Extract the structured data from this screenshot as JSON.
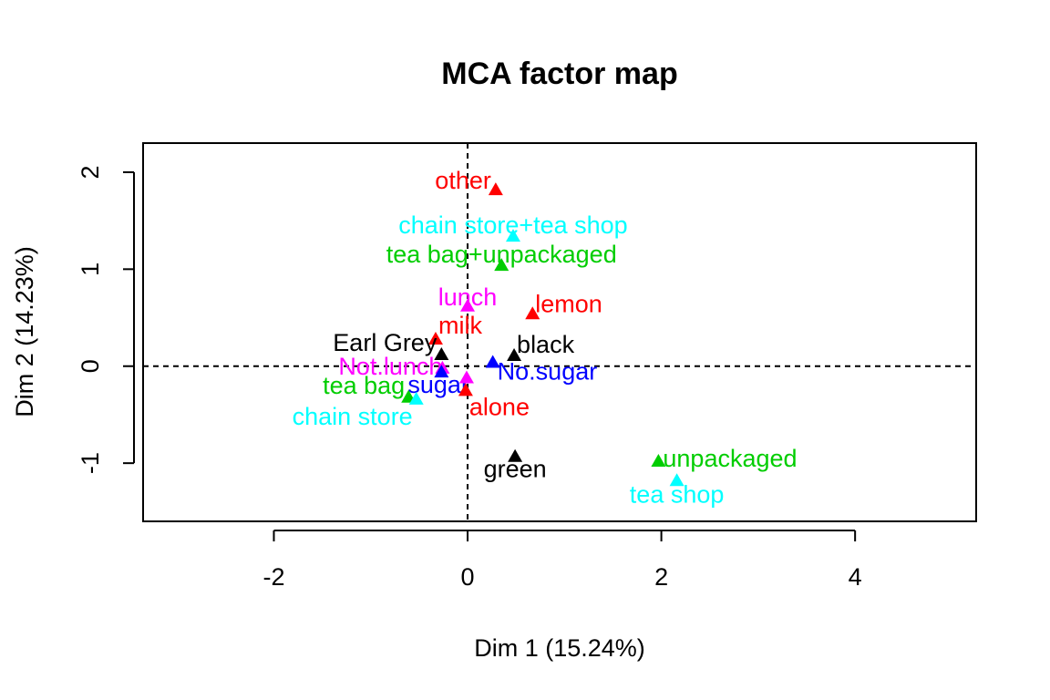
{
  "chart_data": {
    "type": "scatter",
    "title": "MCA factor map",
    "xlabel": "Dim 1 (15.24%)",
    "ylabel": "Dim 2 (14.23%)",
    "xlim": [
      -3.35,
      5.25
    ],
    "ylim": [
      -1.6,
      2.3
    ],
    "xticks": [
      -2,
      0,
      2,
      4
    ],
    "yticks": [
      -1,
      0,
      1,
      2
    ],
    "xtick_labels": [
      "-2",
      "0",
      "2",
      "4"
    ],
    "ytick_labels": [
      "-1",
      "0",
      "1",
      "2"
    ],
    "reference_lines": {
      "x": 0,
      "y": 0,
      "style": "dashed"
    },
    "colors": {
      "black": "#000000",
      "red": "#ff0000",
      "green": "#00cd00",
      "blue": "#0000ff",
      "cyan": "#00ffff",
      "magenta": "#ff00ff"
    },
    "points": [
      {
        "label": "other",
        "x": 0.29,
        "y": 1.82,
        "color": "red",
        "anchor": "end",
        "dx": -5,
        "dy": -1
      },
      {
        "label": "chain store+tea shop",
        "x": 0.47,
        "y": 1.34,
        "color": "cyan",
        "anchor": "middle",
        "dx": 0,
        "dy": -3
      },
      {
        "label": "tea bag+unpackaged",
        "x": 0.35,
        "y": 1.04,
        "color": "green",
        "anchor": "middle",
        "dx": 0,
        "dy": -3
      },
      {
        "label": "lunch",
        "x": 0.0,
        "y": 0.62,
        "color": "magenta",
        "anchor": "middle",
        "dx": 0,
        "dy": -1
      },
      {
        "label": "lemon",
        "x": 0.67,
        "y": 0.54,
        "color": "red",
        "anchor": "start",
        "dx": 3,
        "dy": -2
      },
      {
        "label": "milk",
        "x": -0.33,
        "y": 0.28,
        "color": "red",
        "anchor": "start",
        "dx": 3,
        "dy": -6
      },
      {
        "label": "Earl Grey",
        "x": -0.27,
        "y": 0.12,
        "color": "black",
        "anchor": "end",
        "dx": -5,
        "dy": -4
      },
      {
        "label": "black",
        "x": 0.48,
        "y": 0.11,
        "color": "black",
        "anchor": "start",
        "dx": 3,
        "dy": -3
      },
      {
        "label": "No.sugar",
        "x": 0.26,
        "y": 0.04,
        "color": "blue",
        "anchor": "start",
        "dx": 5,
        "dy": 19
      },
      {
        "label": "Not.lunch",
        "x": -0.26,
        "y": -0.02,
        "color": "magenta",
        "anchor": "end",
        "dx": 0,
        "dy": 7
      },
      {
        "label": "sugar",
        "x": -0.27,
        "y": -0.06,
        "color": "blue",
        "anchor": "start",
        "dx": -37,
        "dy": 23
      },
      {
        "label": "tea bag",
        "x": -0.61,
        "y": -0.32,
        "color": "green",
        "anchor": "end",
        "dx": -4,
        "dy": -4
      },
      {
        "label": "chain store",
        "x": -0.53,
        "y": -0.34,
        "color": "cyan",
        "anchor": "end",
        "dx": -4,
        "dy": 28
      },
      {
        "label": "alone",
        "x": -0.02,
        "y": -0.25,
        "color": "red",
        "anchor": "start",
        "dx": 4,
        "dy": 27
      },
      {
        "label": "green",
        "x": 0.49,
        "y": -0.93,
        "color": "black",
        "anchor": "middle",
        "dx": 0,
        "dy": 23
      },
      {
        "label": "unpackaged",
        "x": 1.97,
        "y": -0.98,
        "color": "green",
        "anchor": "start",
        "dx": 5,
        "dy": 6
      },
      {
        "label": "tea shop",
        "x": 2.16,
        "y": -1.18,
        "color": "cyan",
        "anchor": "middle",
        "dx": 0,
        "dy": 24
      },
      {
        "label": "",
        "x": -0.01,
        "y": -0.12,
        "color": "magenta",
        "anchor": "middle",
        "dx": 0,
        "dy": 0
      }
    ]
  }
}
